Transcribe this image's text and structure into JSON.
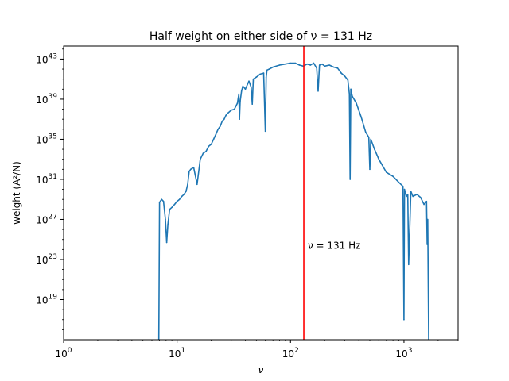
{
  "chart_data": {
    "type": "line",
    "title": "Half weight on either side of ν = 131 Hz",
    "xlabel": "ν",
    "ylabel": "weight (A²/N)",
    "xscale": "log",
    "yscale": "log",
    "xlim": [
      1,
      3000
    ],
    "ylim_log10": [
      15,
      44.3
    ],
    "x_ticks": [
      {
        "value": 1,
        "base": "10",
        "exp": "0"
      },
      {
        "value": 10,
        "base": "10",
        "exp": "1"
      },
      {
        "value": 100,
        "base": "10",
        "exp": "2"
      },
      {
        "value": 1000,
        "base": "10",
        "exp": "3"
      }
    ],
    "y_ticks": [
      {
        "log10": 19,
        "base": "10",
        "exp": "19"
      },
      {
        "log10": 23,
        "base": "10",
        "exp": "23"
      },
      {
        "log10": 27,
        "base": "10",
        "exp": "27"
      },
      {
        "log10": 31,
        "base": "10",
        "exp": "31"
      },
      {
        "log10": 35,
        "base": "10",
        "exp": "35"
      },
      {
        "log10": 39,
        "base": "10",
        "exp": "39"
      },
      {
        "log10": 43,
        "base": "10",
        "exp": "43"
      }
    ],
    "series": [
      {
        "color": "#1f77b4",
        "x": [
          6.9,
          7.0,
          7.3,
          7.6,
          7.9,
          8.1,
          8.3,
          8.6,
          9.0,
          9.5,
          10.0,
          10.5,
          11.0,
          11.5,
          12.0,
          12.4,
          12.8,
          13.2,
          14.0,
          15.0,
          16.0,
          17.0,
          18.0,
          19.0,
          20.0,
          21.0,
          22.0,
          23.0,
          24.0,
          25.0,
          26.0,
          27.0,
          28.0,
          30.0,
          32.0,
          34.0,
          35.0,
          35.5,
          36.0,
          37.0,
          38.0,
          40.0,
          43.0,
          45.0,
          46.0,
          47.0,
          50.0,
          54.0,
          58.0,
          60.0,
          61.0,
          62.0,
          65.0,
          70.0,
          80.0,
          90.0,
          100.0,
          110.0,
          120.0,
          130.0,
          140.0,
          150.0,
          160.0,
          170.0,
          175.0,
          180.0,
          190.0,
          200.0,
          220.0,
          240.0,
          260.0,
          280.0,
          300.0,
          320.0,
          330.0,
          335.0,
          340.0,
          350.0,
          380.0,
          420.0,
          460.0,
          490.0,
          500.0,
          510.0,
          550.0,
          600.0,
          700.0,
          800.0,
          900.0,
          980.0,
          1000.0,
          1010.0,
          1050.0,
          1080.0,
          1100.0,
          1150.0,
          1200.0,
          1300.0,
          1400.0,
          1500.0,
          1580.0,
          1600.0,
          1620.0,
          1650.0
        ],
        "y_log10": [
          15.0,
          28.7,
          29.0,
          28.8,
          27.0,
          24.7,
          26.5,
          28.0,
          28.2,
          28.5,
          28.8,
          29.0,
          29.3,
          29.5,
          29.8,
          30.5,
          31.8,
          32.0,
          32.2,
          30.5,
          33.0,
          33.6,
          33.8,
          34.3,
          34.5,
          35.0,
          35.5,
          36.0,
          36.3,
          36.8,
          37.0,
          37.4,
          37.6,
          37.9,
          38.0,
          38.6,
          39.5,
          37.0,
          38.8,
          39.8,
          40.3,
          40.0,
          40.8,
          40.2,
          38.5,
          41.0,
          41.2,
          41.5,
          41.6,
          35.8,
          41.2,
          41.9,
          42.0,
          42.2,
          42.4,
          42.5,
          42.6,
          42.6,
          42.4,
          42.3,
          42.5,
          42.4,
          42.6,
          42.1,
          39.8,
          42.4,
          42.5,
          42.3,
          42.4,
          42.2,
          42.1,
          41.6,
          41.3,
          40.9,
          39.5,
          31.0,
          40.0,
          39.3,
          38.6,
          37.2,
          35.7,
          35.2,
          32.0,
          35.0,
          34.0,
          33.0,
          31.7,
          31.3,
          30.7,
          30.3,
          17.0,
          30.0,
          29.3,
          29.5,
          22.5,
          29.8,
          29.3,
          29.5,
          29.2,
          28.5,
          28.8,
          24.5,
          27.0,
          15.0
        ]
      }
    ],
    "vline": {
      "x": 131,
      "color": "#ff0000",
      "label": "ν = 131 Hz",
      "label_log10_y": 24.4
    }
  }
}
